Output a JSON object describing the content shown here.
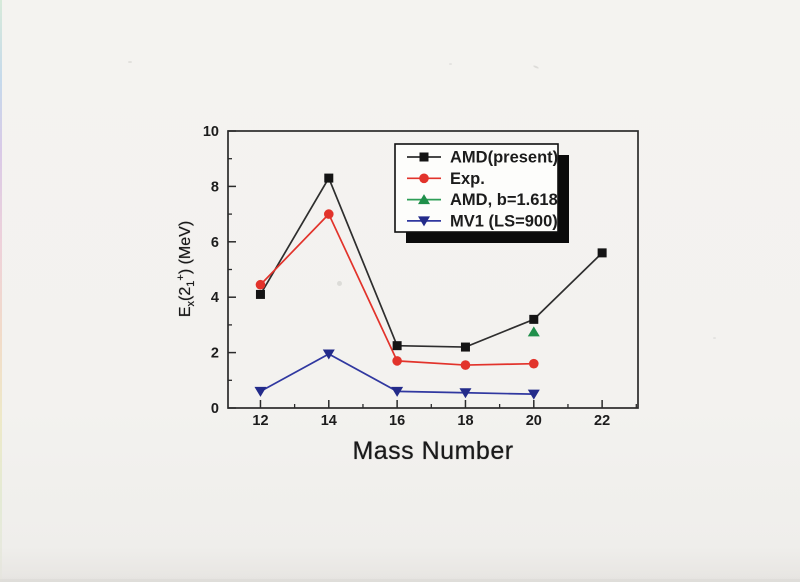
{
  "page": {
    "background": "#f3f2ef",
    "description": "scanned page"
  },
  "chart_data": {
    "type": "line",
    "title": "",
    "xlabel": "Mass Number",
    "ylabel": "Ex(21+) (MeV)",
    "ylabel_parts": {
      "main": "E",
      "sub1": "x",
      "mid": "(2",
      "sub2": "1",
      "sup": "+",
      "end": ") (MeV)"
    },
    "xlim": [
      11.05,
      23.05
    ],
    "ylim": [
      0,
      10
    ],
    "x_ticks": [
      12,
      14,
      16,
      18,
      20,
      22
    ],
    "x_minor_ticks": [
      13,
      15,
      17,
      19,
      21,
      23
    ],
    "y_ticks": [
      0,
      2,
      4,
      6,
      8,
      10
    ],
    "y_minor_ticks": [
      1,
      3,
      5,
      7,
      9
    ],
    "grid": false,
    "legend_position": "top-right",
    "frame_color": "#2b2b2b",
    "legend": {
      "background": "#fdfdfb",
      "border": "#101010",
      "shadow": "#0b0b0b"
    },
    "series": [
      {
        "name": "AMD(present)",
        "marker": "square",
        "color": "#2e2e2e",
        "marker_color": "#141414",
        "x": [
          12,
          14,
          16,
          18,
          20,
          22
        ],
        "values": [
          4.1,
          8.3,
          2.25,
          2.2,
          3.2,
          5.6
        ]
      },
      {
        "name": "Exp.",
        "marker": "circle",
        "color": "#e2332b",
        "marker_color": "#e2332b",
        "x": [
          12,
          14,
          16,
          18,
          20
        ],
        "values": [
          4.45,
          7.0,
          1.7,
          1.55,
          1.6
        ]
      },
      {
        "name": "AMD, b=1.618",
        "marker": "triangle-up",
        "color": "#2e9e57",
        "marker_color": "#1f8f4a",
        "x": [
          20
        ],
        "values": [
          2.75
        ]
      },
      {
        "name": "MV1 (LS=900)",
        "marker": "triangle-down",
        "color": "#3038a0",
        "marker_color": "#232b8a",
        "x": [
          12,
          14,
          16,
          18,
          20
        ],
        "values": [
          0.6,
          1.95,
          0.6,
          0.55,
          0.5
        ]
      }
    ]
  }
}
